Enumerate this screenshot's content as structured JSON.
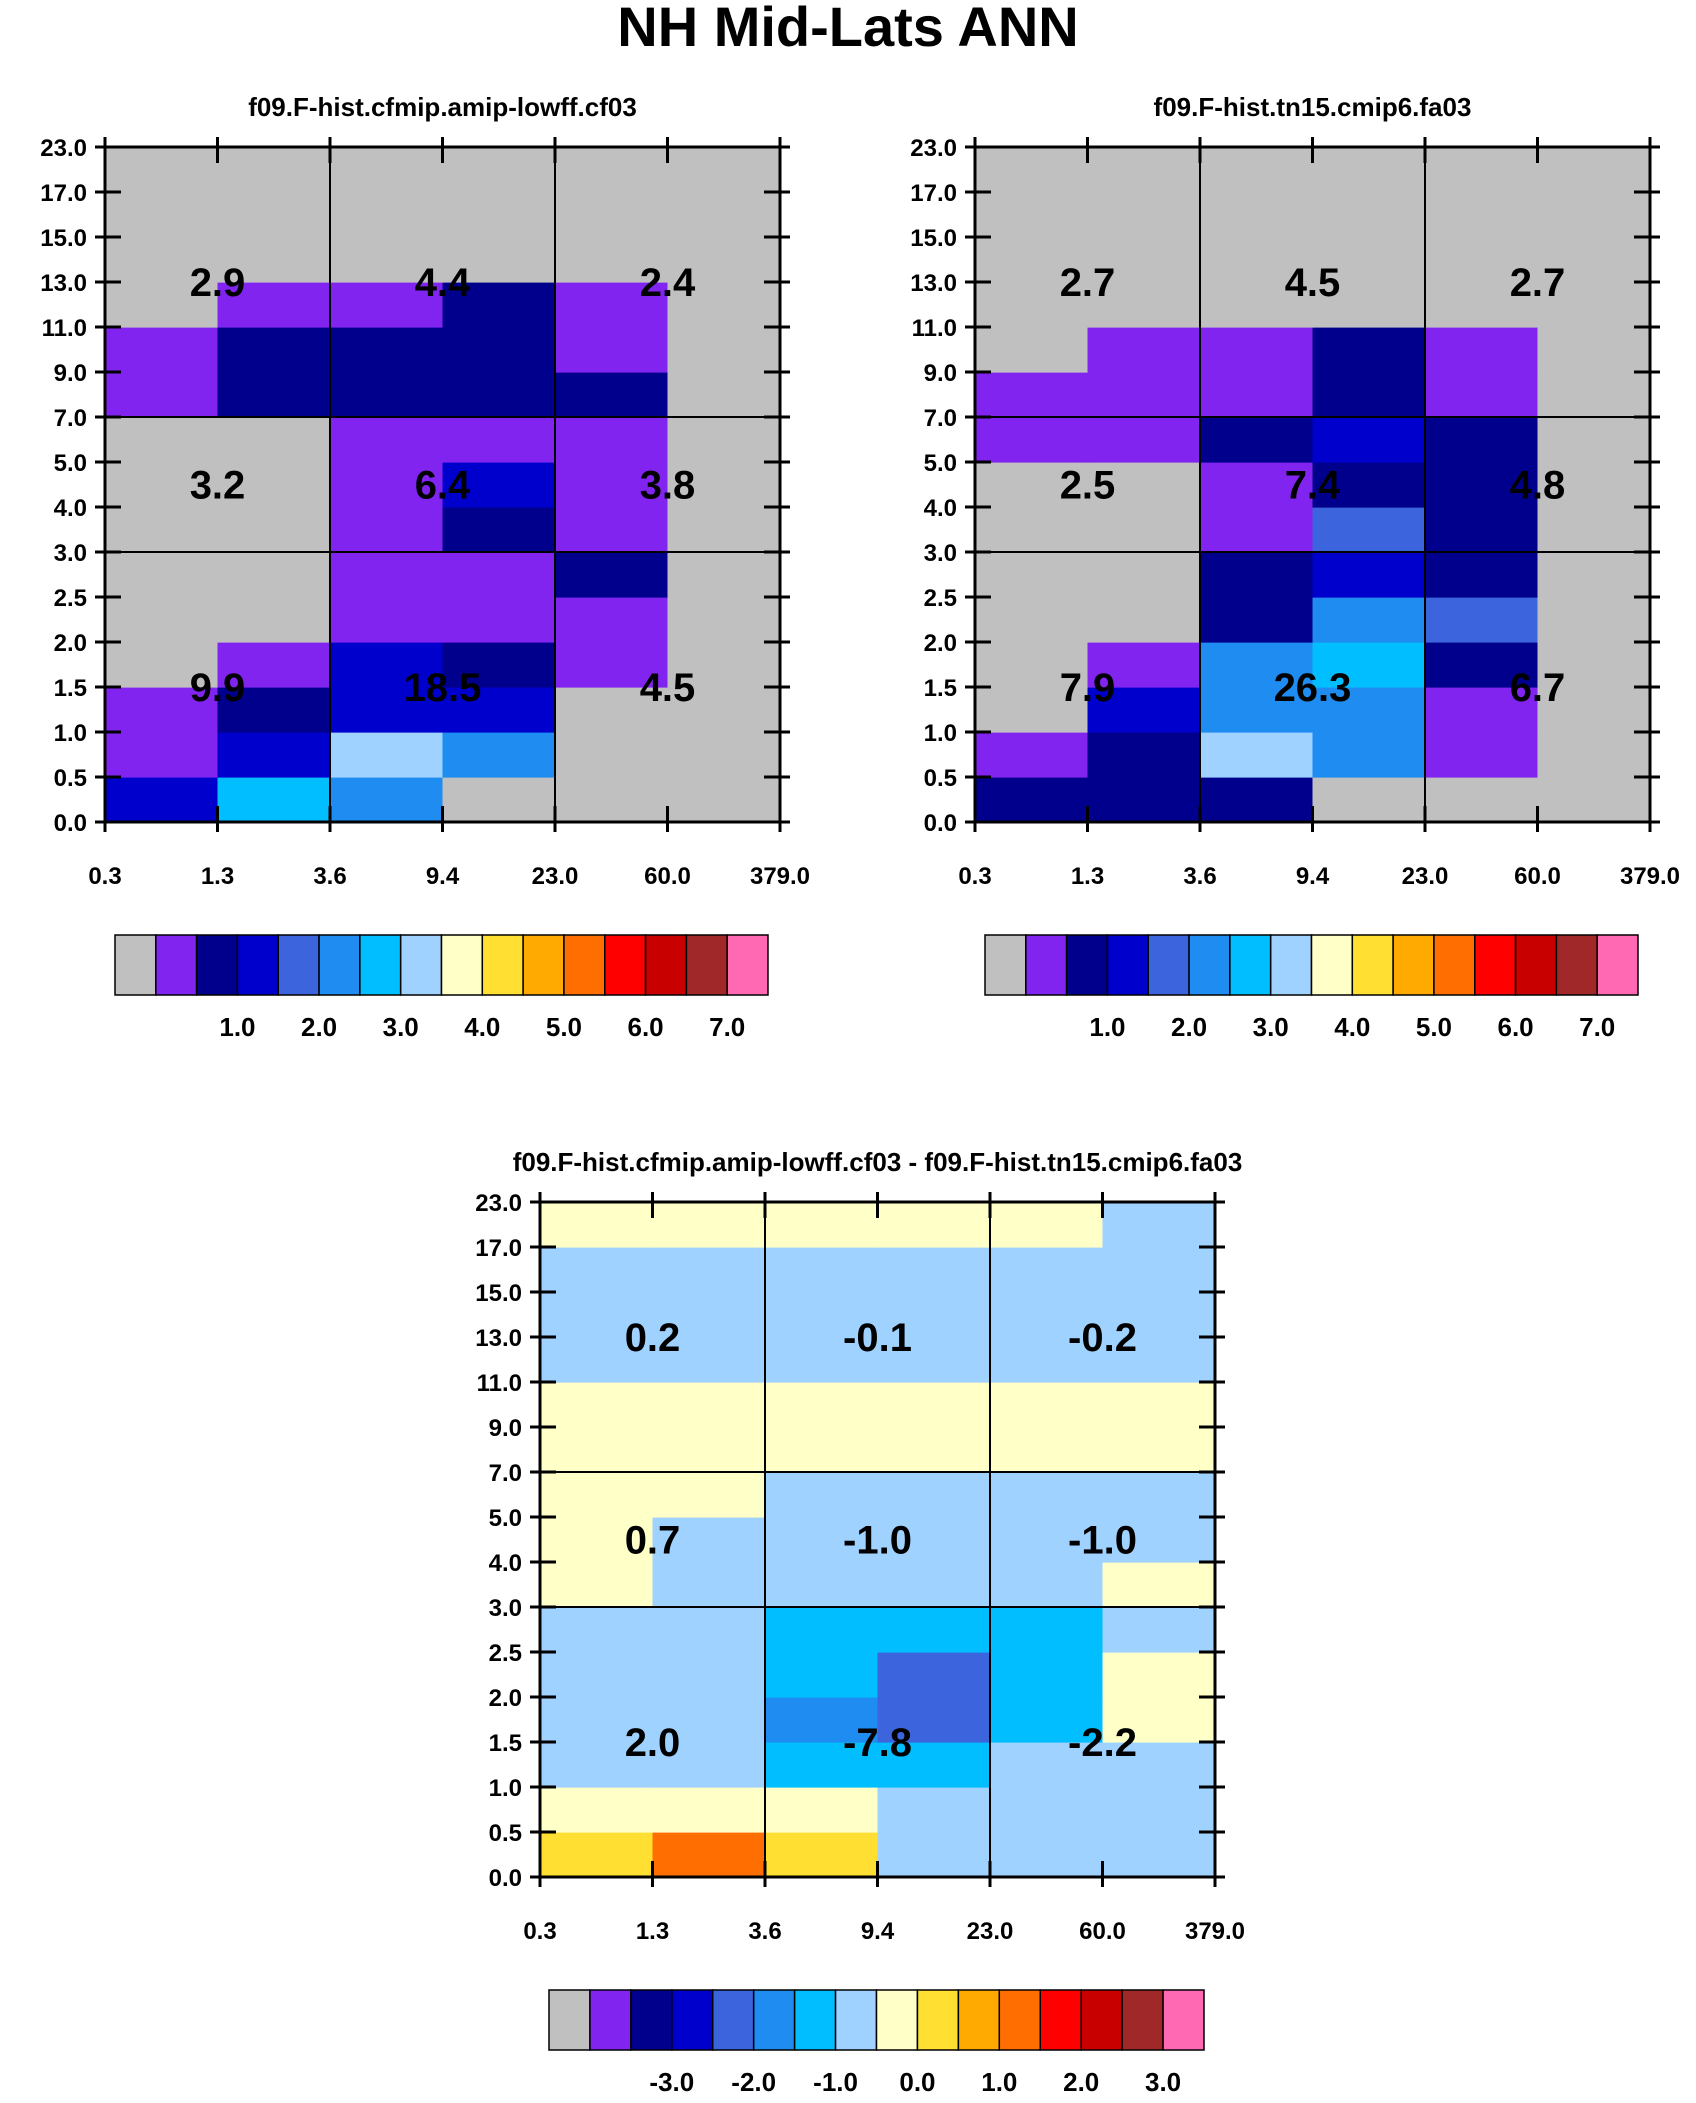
{
  "figure_title": "NH Mid-Lats ANN",
  "palette": {
    "border": "#000000",
    "missing": "#c0c0c0",
    "bg": "#ffffff",
    "colors": [
      "#c0c0c0",
      "#8224f0",
      "#00008c",
      "#0000cc",
      "#3c64dc",
      "#1e8cf0",
      "#00beff",
      "#a0d2ff",
      "#ffffc8",
      "#ffe032",
      "#ffaa00",
      "#ff6e00",
      "#ff0000",
      "#c80000",
      "#a02828",
      "#ff69b4"
    ]
  },
  "x_ticks": [
    "0.3",
    "1.3",
    "3.6",
    "9.4",
    "23.0",
    "60.0",
    "379.0"
  ],
  "y_ticks": [
    "0.0",
    "0.5",
    "1.0",
    "1.5",
    "2.0",
    "2.5",
    "3.0",
    "4.0",
    "5.0",
    "7.0",
    "9.0",
    "11.0",
    "13.0",
    "15.0",
    "17.0",
    "23.0"
  ],
  "chart_data": [
    {
      "type": "heatmap",
      "title": "f09.F-hist.cfmip.amip-lowff.cf03",
      "xlabel": "",
      "ylabel": "",
      "legend_type": "absolute",
      "colorbar_labels": [
        "1.0",
        "2.0",
        "3.0",
        "4.0",
        "5.0",
        "6.0",
        "7.0"
      ],
      "grid_rows_bottom_to_top": [
        [
          3,
          6,
          5,
          0,
          0,
          0
        ],
        [
          1,
          3,
          7,
          5,
          0,
          0
        ],
        [
          1,
          2,
          3,
          3,
          0,
          0
        ],
        [
          0,
          1,
          3,
          2,
          1,
          0
        ],
        [
          0,
          0,
          1,
          1,
          1,
          0
        ],
        [
          0,
          0,
          1,
          1,
          2,
          0
        ],
        [
          0,
          0,
          1,
          2,
          1,
          0
        ],
        [
          0,
          0,
          1,
          3,
          1,
          0
        ],
        [
          0,
          0,
          1,
          1,
          1,
          0
        ],
        [
          1,
          2,
          2,
          2,
          2,
          0
        ],
        [
          1,
          2,
          2,
          2,
          1,
          0
        ],
        [
          0,
          1,
          1,
          2,
          1,
          0
        ],
        [
          0,
          0,
          0,
          0,
          0,
          0
        ],
        [
          0,
          0,
          0,
          0,
          0,
          0
        ],
        [
          0,
          0,
          0,
          0,
          0,
          0
        ]
      ],
      "summary_values": {
        "labels": [
          [
            "9.9",
            "18.5",
            "4.5"
          ],
          [
            "3.2",
            "6.4",
            "3.8"
          ],
          [
            "2.9",
            "4.4",
            "2.4"
          ]
        ]
      }
    },
    {
      "type": "heatmap",
      "title": "f09.F-hist.tn15.cmip6.fa03",
      "xlabel": "",
      "ylabel": "",
      "legend_type": "absolute",
      "colorbar_labels": [
        "1.0",
        "2.0",
        "3.0",
        "4.0",
        "5.0",
        "6.0",
        "7.0"
      ],
      "grid_rows_bottom_to_top": [
        [
          2,
          2,
          2,
          0,
          0,
          0
        ],
        [
          1,
          2,
          7,
          5,
          1,
          0
        ],
        [
          0,
          3,
          5,
          5,
          1,
          0
        ],
        [
          0,
          1,
          5,
          6,
          2,
          0
        ],
        [
          0,
          0,
          2,
          5,
          4,
          0
        ],
        [
          0,
          0,
          2,
          3,
          2,
          0
        ],
        [
          0,
          0,
          1,
          4,
          2,
          0
        ],
        [
          0,
          0,
          1,
          2,
          2,
          0
        ],
        [
          1,
          1,
          2,
          3,
          2,
          0
        ],
        [
          1,
          1,
          1,
          2,
          1,
          0
        ],
        [
          0,
          1,
          1,
          2,
          1,
          0
        ],
        [
          0,
          0,
          0,
          0,
          0,
          0
        ],
        [
          0,
          0,
          0,
          0,
          0,
          0
        ],
        [
          0,
          0,
          0,
          0,
          0,
          0
        ],
        [
          0,
          0,
          0,
          0,
          0,
          0
        ]
      ],
      "summary_values": {
        "labels": [
          [
            "7.9",
            "26.3",
            "6.7"
          ],
          [
            "2.5",
            "7.4",
            "4.8"
          ],
          [
            "2.7",
            "4.5",
            "2.7"
          ]
        ]
      }
    },
    {
      "type": "heatmap",
      "title": "f09.F-hist.cfmip.amip-lowff.cf03 - f09.F-hist.tn15.cmip6.fa03",
      "xlabel": "",
      "ylabel": "",
      "legend_type": "difference",
      "colorbar_labels": [
        "-3.0",
        "-2.0",
        "-1.0",
        "0.0",
        "1.0",
        "2.0",
        "3.0"
      ],
      "grid_rows_bottom_to_top": [
        [
          9,
          11,
          9,
          7,
          7,
          7
        ],
        [
          8,
          8,
          8,
          7,
          7,
          7
        ],
        [
          7,
          7,
          6,
          6,
          7,
          7
        ],
        [
          7,
          7,
          5,
          4,
          6,
          8
        ],
        [
          7,
          7,
          6,
          4,
          6,
          8
        ],
        [
          7,
          7,
          6,
          6,
          6,
          7
        ],
        [
          8,
          7,
          7,
          7,
          7,
          8
        ],
        [
          8,
          7,
          7,
          7,
          7,
          7
        ],
        [
          8,
          8,
          7,
          7,
          7,
          7
        ],
        [
          8,
          8,
          8,
          8,
          8,
          8
        ],
        [
          8,
          8,
          8,
          8,
          8,
          8
        ],
        [
          7,
          7,
          7,
          7,
          7,
          7
        ],
        [
          7,
          7,
          7,
          7,
          7,
          7
        ],
        [
          7,
          7,
          7,
          7,
          7,
          7
        ],
        [
          8,
          8,
          8,
          8,
          8,
          7
        ]
      ],
      "summary_values": {
        "labels": [
          [
            "2.0",
            "-7.8",
            "-2.2"
          ],
          [
            "0.7",
            "-1.0",
            "-1.0"
          ],
          [
            "0.2",
            "-0.1",
            "-0.2"
          ]
        ]
      }
    }
  ]
}
